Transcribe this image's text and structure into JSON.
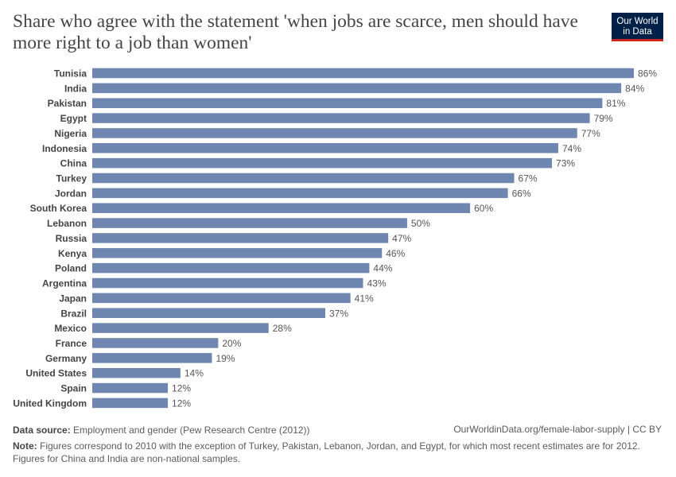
{
  "header": {
    "title": "Share who agree with the statement 'when jobs are scarce, men should have more right to a job than women'",
    "logo": "Our World in Data"
  },
  "chart_data": {
    "type": "bar",
    "orientation": "horizontal",
    "unit": "%",
    "categories": [
      "Tunisia",
      "India",
      "Pakistan",
      "Egypt",
      "Nigeria",
      "Indonesia",
      "China",
      "Turkey",
      "Jordan",
      "South Korea",
      "Lebanon",
      "Russia",
      "Kenya",
      "Poland",
      "Argentina",
      "Japan",
      "Brazil",
      "Mexico",
      "France",
      "Germany",
      "United States",
      "Spain",
      "United Kingdom"
    ],
    "values": [
      86,
      84,
      81,
      79,
      77,
      74,
      73,
      67,
      66,
      60,
      50,
      47,
      46,
      44,
      43,
      41,
      37,
      28,
      20,
      19,
      14,
      12,
      12
    ],
    "bar_color": "#6f87b0",
    "xlim": [
      0,
      86
    ]
  },
  "footer": {
    "source_label": "Data source:",
    "source": "Employment and gender (Pew Research Centre (2012))",
    "url": "OurWorldinData.org/female-labor-supply | CC BY",
    "note_label": "Note:",
    "note": "Figures correspond to 2010 with the exception of Turkey, Pakistan, Lebanon, Jordan, and Egypt, for which most recent estimates are for 2012. Figures for China and India are non-national samples."
  }
}
